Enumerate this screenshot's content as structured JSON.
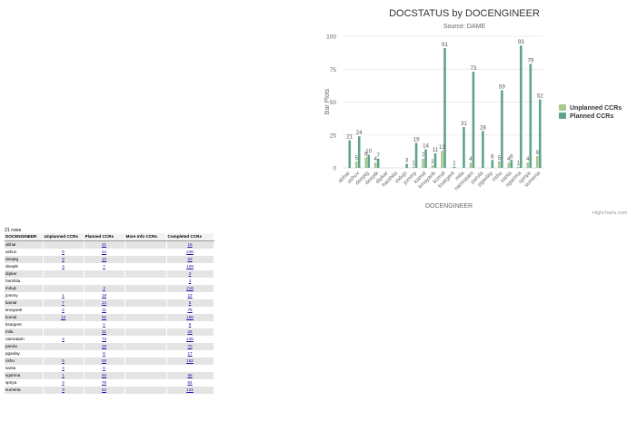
{
  "chart_data": {
    "type": "bar",
    "title": "DOCSTATUS by DOCENGINEER",
    "subtitle": "Source: DAME",
    "xlabel": "DOCENGINEER",
    "ylabel": "Bar Plots",
    "ylim": [
      0,
      100
    ],
    "yticks": [
      0,
      25,
      50,
      75,
      100
    ],
    "grid": true,
    "legend_position": "right",
    "categories": [
      "abhar",
      "ashuv",
      "deeptg",
      "deeptk",
      "dipkar",
      "harshita",
      "indujs",
      "jommy",
      "kamal",
      "kmayank",
      "komal",
      "ksargent",
      "mila",
      "namratam",
      "parula",
      "pgaxlay",
      "rishu",
      "santa",
      "sgarima",
      "spriya",
      "sumerta"
    ],
    "series": [
      {
        "name": "Unplanned CCRs",
        "color": "#a6c98f",
        "values": [
          null,
          5,
          8,
          4,
          null,
          null,
          null,
          1,
          7,
          2,
          13,
          null,
          null,
          4,
          null,
          null,
          5,
          4,
          1,
          4,
          9
        ]
      },
      {
        "name": "Planned CCRs",
        "color": "#5fa38a",
        "values": [
          21,
          24,
          10,
          7,
          null,
          null,
          3,
          19,
          14,
          11,
          91,
          1,
          31,
          73,
          28,
          6,
          59,
          6,
          93,
          79,
          52
        ]
      }
    ],
    "credits": "Highcharts.com"
  },
  "table": {
    "row_count": "21 rows",
    "headers": [
      "DOCENGINEER",
      "Unplanned CCRs",
      "Planned CCRs",
      "More Info CCRs",
      "Completed CCRs"
    ],
    "rows": [
      [
        "abhar",
        "",
        "21",
        "",
        "15"
      ],
      [
        "ashuv",
        "5",
        "24",
        "",
        "246"
      ],
      [
        "deeptg",
        "8",
        "10",
        "",
        "63"
      ],
      [
        "deeptk",
        "4",
        "7",
        "",
        "109"
      ],
      [
        "dipkar",
        "",
        "",
        "",
        "3"
      ],
      [
        "harshita",
        "",
        "",
        "",
        "3"
      ],
      [
        "indujs",
        "",
        "3",
        "",
        "218"
      ],
      [
        "jommy",
        "1",
        "19",
        "",
        "12"
      ],
      [
        "kamal",
        "7",
        "14",
        "",
        "5"
      ],
      [
        "kmayank",
        "2",
        "11",
        "",
        "78"
      ],
      [
        "komal",
        "13",
        "91",
        "",
        "165"
      ],
      [
        "ksargent",
        "",
        "1",
        "",
        "9"
      ],
      [
        "mila",
        "",
        "31",
        "",
        "26"
      ],
      [
        "namratam",
        "4",
        "73",
        "",
        "135"
      ],
      [
        "parula",
        "",
        "28",
        "",
        "70"
      ],
      [
        "pgaxlay",
        "",
        "6",
        "",
        "17"
      ],
      [
        "rishu",
        "5",
        "59",
        "",
        "162"
      ],
      [
        "santa",
        "4",
        "6",
        "",
        ""
      ],
      [
        "sgarima",
        "1",
        "93",
        "",
        "58"
      ],
      [
        "spriya",
        "4",
        "79",
        "",
        "64"
      ],
      [
        "sumerta",
        "9",
        "52",
        "",
        "131"
      ]
    ]
  }
}
